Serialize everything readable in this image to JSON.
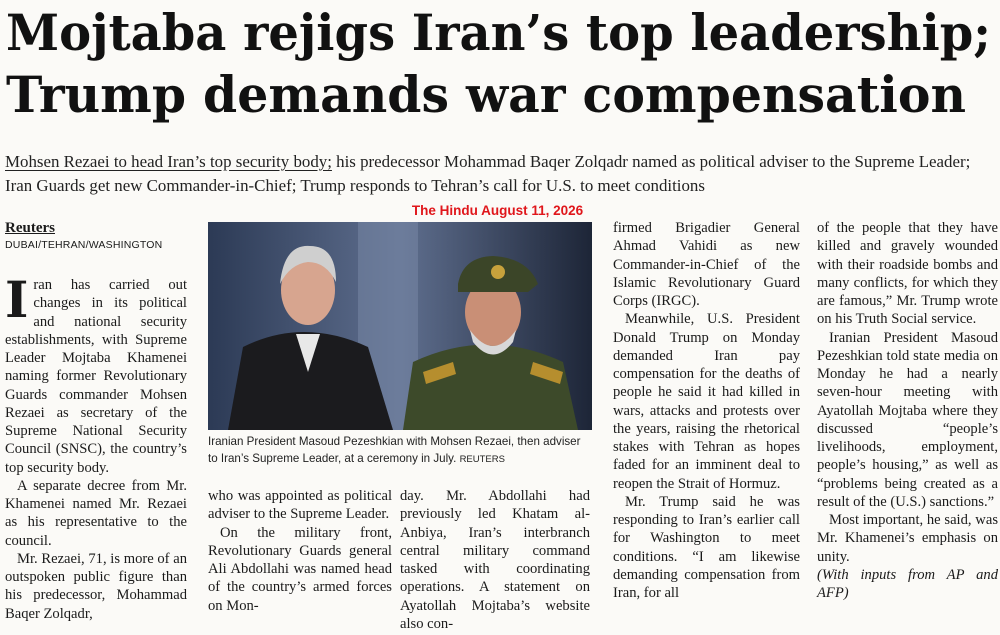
{
  "headline": {
    "lines": [
      "Mojtaba rejigs Iran’s top leadership;",
      "Trump demands war compensation"
    ]
  },
  "subheadline": {
    "lead": "Mohsen Rezaei to head Iran’s top security body;",
    "text": "his predecessor Mohammad Baqer Zolqadr named as political adviser to the Supreme Leader; Iran Guards get new Commander-in-Chief; Trump responds to Tehran’s call for U.S. to meet conditions"
  },
  "stamp": "The Hindu August 11, 2026",
  "byline": {
    "agency": "Reuters",
    "dateline": "DUBAI/TEHRAN/WASHINGTON"
  },
  "photo": {
    "caption": "Iranian President Masoud Pezeshkian with Mohsen Rezaei, then adviser to Iran’s Supreme Leader, at a ceremony in July.",
    "credit": "REUTERS"
  },
  "drop_cap": "I",
  "columns": [
    {
      "paragraphs": [
        "ran has carried out changes in its political and national security establishments, with Supreme Leader Mojtaba Khamenei naming former Revolutionary Guards commander Mohsen Rezaei as secretary of the Supreme National Security Council (SNSC), the country’s top security body.",
        "A separate decree from Mr. Khamenei named Mr. Rezaei as his representative to the council.",
        "Mr. Rezaei, 71, is more of an outspoken public figure than his predecessor, Mohammad Baqer Zolqadr,"
      ]
    },
    {
      "paragraphs": [
        "who was appointed as political adviser to the Supreme Leader.",
        "On the military front, Revolutionary Guards general Ali Abdollahi was named head of the country’s armed forces on Mon-"
      ]
    },
    {
      "paragraphs": [
        "day. Mr. Abdollahi had previously led Khatam al-Anbiya, Iran’s interbranch central military command tasked with coordinating operations. A statement on Ayatollah Mojtaba’s website also con-"
      ]
    },
    {
      "paragraphs": [
        "firmed Brigadier General Ahmad Vahidi as new Commander-in-Chief of the Islamic Revolutionary Guard Corps (IRGC).",
        "Meanwhile, U.S. President Donald Trump on Monday demanded Iran pay compensation for the deaths of people he said it had killed in wars, attacks and protests over the years, raising the rhetorical stakes with Tehran as hopes faded for an imminent deal to reopen the Strait of Hormuz.",
        "Mr. Trump said he was responding to Iran’s earlier call for Washington to meet conditions. “I am likewise demanding compensation from Iran, for all"
      ]
    },
    {
      "paragraphs": [
        "of the people that they have killed and gravely wounded with their roadside bombs and many conflicts, for which they are famous,” Mr. Trump wrote on his Truth Social service.",
        "Iranian President Masoud Pezeshkian told state media on Monday he had a nearly seven-hour meeting with Ayatollah Mojtaba where they discussed “people’s livelihoods, employment, people’s housing,” as well as “problems being created as a result of the (U.S.) sanctions.”",
        "Most important, he said, was Mr. Khamenei’s emphasis on unity."
      ],
      "note": "(With inputs from AP and AFP)"
    }
  ]
}
